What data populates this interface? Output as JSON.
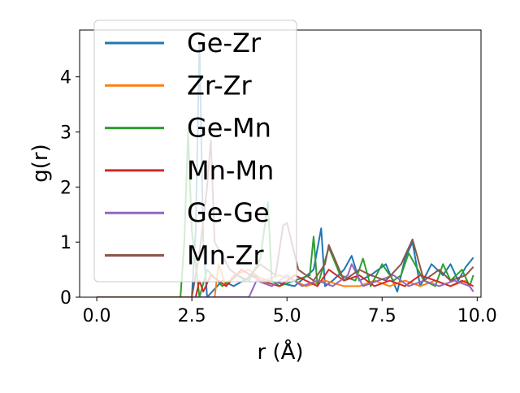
{
  "chart_data": {
    "type": "line",
    "title": "",
    "xlabel": "r (Å)",
    "ylabel": "g(r)",
    "xlim": [
      -0.45,
      10.1
    ],
    "ylim": [
      0,
      4.85
    ],
    "xticks": [
      0.0,
      2.5,
      5.0,
      7.5,
      10.0
    ],
    "xtick_labels": [
      "0.0",
      "2.5",
      "5.0",
      "7.5",
      "10.0"
    ],
    "yticks": [
      0,
      1,
      2,
      3,
      4
    ],
    "ytick_labels": [
      "0",
      "1",
      "2",
      "3",
      "4"
    ],
    "grid": false,
    "legend_position": "top-left",
    "series": [
      {
        "name": "Ge-Zr",
        "color": "#1f77b4",
        "x": [
          0.0,
          2.5,
          2.6,
          2.7,
          2.8,
          2.9,
          3.3,
          3.6,
          4.1,
          4.5,
          5.2,
          5.7,
          5.9,
          6.0,
          6.2,
          6.5,
          6.7,
          6.9,
          7.2,
          7.6,
          7.9,
          8.1,
          8.3,
          8.5,
          8.8,
          9.1,
          9.3,
          9.5,
          9.7,
          9.9
        ],
        "y": [
          0.0,
          0.0,
          1.2,
          4.62,
          1.0,
          0.0,
          0.3,
          0.2,
          0.4,
          0.3,
          0.2,
          0.5,
          1.25,
          0.2,
          0.3,
          0.5,
          0.75,
          0.3,
          0.4,
          0.6,
          0.1,
          0.7,
          1.0,
          0.2,
          0.6,
          0.4,
          0.6,
          0.3,
          0.55,
          0.72
        ]
      },
      {
        "name": "Zr-Zr",
        "color": "#ff7f0e",
        "x": [
          0.0,
          3.1,
          3.2,
          3.4,
          3.6,
          4.0,
          4.4,
          4.8,
          5.2,
          5.5,
          6.0,
          6.5,
          6.9,
          7.3,
          7.7,
          8.1,
          8.5,
          8.9,
          9.3,
          9.7,
          9.9
        ],
        "y": [
          0.0,
          0.0,
          0.6,
          0.2,
          0.4,
          0.5,
          0.3,
          0.4,
          0.3,
          0.2,
          0.3,
          0.2,
          0.2,
          0.3,
          0.2,
          0.3,
          0.2,
          0.3,
          0.2,
          0.3,
          0.1
        ]
      },
      {
        "name": "Ge-Mn",
        "color": "#2ca02c",
        "x": [
          0.0,
          2.2,
          2.3,
          2.4,
          2.5,
          2.7,
          2.9,
          3.3,
          3.7,
          4.0,
          4.3,
          4.5,
          4.6,
          4.8,
          5.2,
          5.6,
          5.7,
          5.8,
          6.1,
          6.4,
          6.8,
          7.0,
          7.2,
          7.5,
          7.8,
          8.0,
          8.2,
          8.6,
          8.9,
          9.1,
          9.3,
          9.6,
          9.8,
          9.9
        ],
        "y": [
          0.0,
          0.0,
          1.0,
          3.0,
          1.2,
          0.0,
          0.5,
          0.2,
          0.4,
          0.3,
          0.7,
          1.72,
          0.3,
          0.2,
          0.3,
          0.4,
          1.1,
          0.2,
          0.9,
          0.4,
          0.3,
          0.7,
          0.2,
          0.6,
          0.3,
          0.4,
          0.8,
          0.3,
          0.2,
          0.6,
          0.3,
          0.5,
          0.2,
          0.4
        ]
      },
      {
        "name": "Mn-Mn",
        "color": "#d62728",
        "x": [
          0.0,
          2.6,
          2.7,
          2.8,
          3.0,
          3.4,
          3.8,
          4.3,
          4.8,
          5.2,
          5.5,
          5.8,
          6.1,
          6.5,
          6.9,
          7.3,
          7.7,
          8.1,
          8.5,
          8.9,
          9.3,
          9.6,
          9.9
        ],
        "y": [
          0.0,
          0.0,
          0.3,
          0.1,
          0.4,
          0.2,
          0.5,
          0.3,
          0.2,
          0.4,
          0.3,
          0.2,
          0.5,
          0.3,
          0.4,
          0.2,
          0.3,
          0.2,
          0.4,
          0.3,
          0.2,
          0.3,
          0.2
        ]
      },
      {
        "name": "Ge-Ge",
        "color": "#9467bd",
        "x": [
          0.0,
          4.0,
          4.2,
          4.6,
          5.0,
          5.4,
          5.8,
          6.2,
          6.6,
          6.7,
          7.0,
          7.4,
          7.8,
          8.2,
          8.6,
          9.0,
          9.4,
          9.8,
          9.9
        ],
        "y": [
          0.0,
          0.0,
          0.3,
          0.2,
          0.4,
          0.2,
          0.3,
          0.2,
          0.4,
          0.6,
          0.2,
          0.3,
          0.4,
          0.2,
          0.3,
          0.2,
          0.3,
          0.2,
          0.1
        ]
      },
      {
        "name": "Mn-Zr",
        "color": "#8c564b",
        "x": [
          0.0,
          2.5,
          2.7,
          2.9,
          3.0,
          3.1,
          3.5,
          3.9,
          4.3,
          4.7,
          4.9,
          5.0,
          5.3,
          5.7,
          6.0,
          6.1,
          6.5,
          6.9,
          7.2,
          7.6,
          8.0,
          8.3,
          8.6,
          9.0,
          9.3,
          9.7,
          9.9
        ],
        "y": [
          0.0,
          0.0,
          0.8,
          2.0,
          2.85,
          1.0,
          0.5,
          0.3,
          0.6,
          0.4,
          1.3,
          1.35,
          0.5,
          0.3,
          0.6,
          0.95,
          0.3,
          0.5,
          0.4,
          0.3,
          0.6,
          1.05,
          0.3,
          0.5,
          0.3,
          0.4,
          0.55
        ]
      }
    ]
  }
}
